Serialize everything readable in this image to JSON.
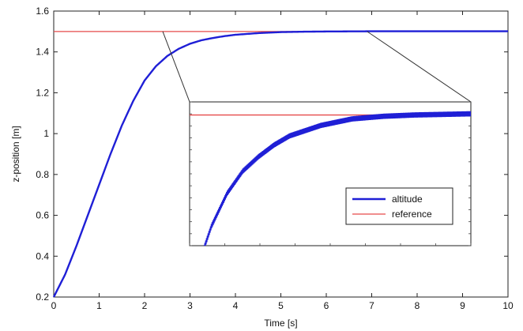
{
  "chart_data": {
    "type": "line",
    "title": "",
    "xlabel": "Time [s]",
    "ylabel": "z-position [m]",
    "xlim": [
      0,
      10
    ],
    "ylim": [
      0.2,
      1.6
    ],
    "xticks": [
      0,
      1,
      2,
      3,
      4,
      5,
      6,
      7,
      8,
      9,
      10
    ],
    "yticks": [
      0.2,
      0.4,
      0.6,
      0.8,
      1.0,
      1.2,
      1.4,
      1.6
    ],
    "xtick_labels": [
      "0",
      "1",
      "2",
      "3",
      "4",
      "5",
      "6",
      "7",
      "8",
      "9",
      "10"
    ],
    "ytick_labels": [
      "0.2",
      "0.4",
      "0.6",
      "0.8",
      "1",
      "1.2",
      "1.4",
      "1.6"
    ],
    "grid": false,
    "series": [
      {
        "name": "altitude",
        "color": "#1f1fd6",
        "x": [
          0,
          0.25,
          0.5,
          0.75,
          1.0,
          1.25,
          1.5,
          1.75,
          2.0,
          2.25,
          2.5,
          2.75,
          3.0,
          3.25,
          3.5,
          3.75,
          4.0,
          4.5,
          5.0,
          5.5,
          6.0,
          7.0,
          8.0,
          9.0,
          10.0
        ],
        "y": [
          0.2,
          0.31,
          0.45,
          0.6,
          0.75,
          0.9,
          1.04,
          1.16,
          1.26,
          1.33,
          1.38,
          1.415,
          1.44,
          1.457,
          1.468,
          1.477,
          1.484,
          1.492,
          1.497,
          1.499,
          1.5,
          1.501,
          1.501,
          1.501,
          1.501
        ]
      },
      {
        "name": "reference",
        "color": "#e64a4a",
        "x": [
          0,
          10
        ],
        "y": [
          1.5,
          1.5
        ]
      }
    ],
    "legend": {
      "placement": "inset-lower-right",
      "entries": [
        "altitude",
        "reference"
      ]
    },
    "inset": {
      "zoom_xlim": [
        2.4,
        6.9
      ],
      "zoom_ylim": [
        1.4,
        1.51
      ],
      "reference_value": 1.5,
      "oscillation_amplitude": 0.002
    }
  }
}
